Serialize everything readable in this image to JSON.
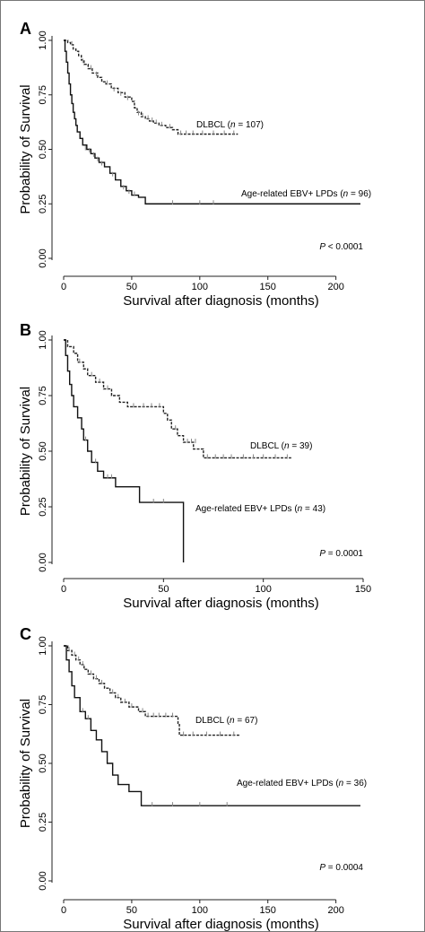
{
  "chart_data": [
    {
      "panel": "A",
      "type": "line",
      "xlabel": "Survival after diagnosis (months)",
      "ylabel": "Probability of Survival",
      "xlim": [
        0,
        220
      ],
      "ylim": [
        0,
        1
      ],
      "xticks": [
        0,
        50,
        100,
        150,
        200
      ],
      "yticks": [
        "0.00",
        "0.25",
        "0.50",
        "0.75",
        "1.00"
      ],
      "grid": false,
      "p_value": "P < 0.0001",
      "series": [
        {
          "name": "DLBCL (n = 107)",
          "label_parts": [
            "DLBCL (",
            "n",
            " = 107)"
          ],
          "style": "dashed",
          "color": "#222222",
          "steps": [
            [
              0,
              1.0
            ],
            [
              3,
              0.99
            ],
            [
              5,
              0.98
            ],
            [
              7,
              0.96
            ],
            [
              9,
              0.95
            ],
            [
              11,
              0.93
            ],
            [
              13,
              0.91
            ],
            [
              15,
              0.89
            ],
            [
              18,
              0.87
            ],
            [
              21,
              0.85
            ],
            [
              25,
              0.83
            ],
            [
              28,
              0.81
            ],
            [
              31,
              0.8
            ],
            [
              35,
              0.78
            ],
            [
              40,
              0.76
            ],
            [
              45,
              0.74
            ],
            [
              50,
              0.72
            ],
            [
              52,
              0.69
            ],
            [
              54,
              0.67
            ],
            [
              57,
              0.65
            ],
            [
              60,
              0.64
            ],
            [
              63,
              0.63
            ],
            [
              66,
              0.62
            ],
            [
              70,
              0.61
            ],
            [
              75,
              0.6
            ],
            [
              80,
              0.59
            ],
            [
              84,
              0.57
            ],
            [
              128,
              0.57
            ]
          ],
          "censored": [
            [
              6,
              0.98
            ],
            [
              14,
              0.9
            ],
            [
              20,
              0.87
            ],
            [
              24,
              0.84
            ],
            [
              32,
              0.8
            ],
            [
              37,
              0.77
            ],
            [
              42,
              0.75
            ],
            [
              47,
              0.73
            ],
            [
              55,
              0.66
            ],
            [
              58,
              0.65
            ],
            [
              62,
              0.64
            ],
            [
              65,
              0.63
            ],
            [
              68,
              0.62
            ],
            [
              72,
              0.61
            ],
            [
              78,
              0.6
            ],
            [
              86,
              0.57
            ],
            [
              90,
              0.57
            ],
            [
              95,
              0.57
            ],
            [
              102,
              0.57
            ],
            [
              110,
              0.57
            ],
            [
              118,
              0.57
            ],
            [
              125,
              0.57
            ]
          ]
        },
        {
          "name": "Age-related EBV+ LPDs (n = 96)",
          "label_parts": [
            "Age-related EBV+ LPDs (",
            "n",
            " = 96)"
          ],
          "style": "solid",
          "color": "#111111",
          "steps": [
            [
              0,
              1.0
            ],
            [
              1,
              0.95
            ],
            [
              2,
              0.9
            ],
            [
              3,
              0.85
            ],
            [
              4,
              0.8
            ],
            [
              5,
              0.75
            ],
            [
              6,
              0.71
            ],
            [
              7,
              0.67
            ],
            [
              8,
              0.64
            ],
            [
              9,
              0.61
            ],
            [
              10,
              0.58
            ],
            [
              12,
              0.55
            ],
            [
              14,
              0.52
            ],
            [
              17,
              0.5
            ],
            [
              20,
              0.48
            ],
            [
              23,
              0.46
            ],
            [
              26,
              0.44
            ],
            [
              30,
              0.42
            ],
            [
              34,
              0.39
            ],
            [
              38,
              0.36
            ],
            [
              42,
              0.33
            ],
            [
              46,
              0.31
            ],
            [
              50,
              0.29
            ],
            [
              55,
              0.28
            ],
            [
              60,
              0.25
            ],
            [
              218,
              0.25
            ]
          ],
          "censored": [
            [
              16,
              0.5
            ],
            [
              19,
              0.49
            ],
            [
              22,
              0.47
            ],
            [
              25,
              0.45
            ],
            [
              28,
              0.43
            ],
            [
              36,
              0.38
            ],
            [
              44,
              0.32
            ],
            [
              48,
              0.3
            ],
            [
              52,
              0.29
            ],
            [
              80,
              0.25
            ],
            [
              100,
              0.25
            ],
            [
              110,
              0.25
            ]
          ]
        }
      ]
    },
    {
      "panel": "B",
      "type": "line",
      "xlabel": "Survival after diagnosis (months)",
      "ylabel": "Probability of Survival",
      "xlim": [
        0,
        150
      ],
      "ylim": [
        0,
        1
      ],
      "xticks": [
        0,
        50,
        100,
        150
      ],
      "yticks": [
        "0.00",
        "0.25",
        "0.50",
        "0.75",
        "1.00"
      ],
      "grid": false,
      "p_value": "P = 0.0001",
      "series": [
        {
          "name": "DLBCL (n = 39)",
          "label_parts": [
            "DLBCL (",
            "n",
            " = 39)"
          ],
          "style": "dashed",
          "color": "#222222",
          "steps": [
            [
              0,
              1.0
            ],
            [
              2,
              0.97
            ],
            [
              5,
              0.94
            ],
            [
              7,
              0.9
            ],
            [
              10,
              0.87
            ],
            [
              12,
              0.84
            ],
            [
              16,
              0.81
            ],
            [
              20,
              0.78
            ],
            [
              24,
              0.75
            ],
            [
              28,
              0.72
            ],
            [
              32,
              0.7
            ],
            [
              50,
              0.67
            ],
            [
              52,
              0.64
            ],
            [
              54,
              0.6
            ],
            [
              57,
              0.57
            ],
            [
              60,
              0.54
            ],
            [
              65,
              0.51
            ],
            [
              70,
              0.47
            ],
            [
              114,
              0.47
            ]
          ],
          "censored": [
            [
              8,
              0.9
            ],
            [
              14,
              0.84
            ],
            [
              18,
              0.81
            ],
            [
              22,
              0.78
            ],
            [
              35,
              0.7
            ],
            [
              40,
              0.7
            ],
            [
              44,
              0.7
            ],
            [
              48,
              0.7
            ],
            [
              56,
              0.6
            ],
            [
              62,
              0.54
            ],
            [
              64,
              0.54
            ],
            [
              66,
              0.54
            ],
            [
              72,
              0.47
            ],
            [
              76,
              0.47
            ],
            [
              80,
              0.47
            ],
            [
              84,
              0.47
            ],
            [
              90,
              0.47
            ],
            [
              95,
              0.47
            ],
            [
              100,
              0.47
            ],
            [
              106,
              0.47
            ],
            [
              112,
              0.47
            ]
          ]
        },
        {
          "name": "Age-related EBV+ LPDs (n = 43)",
          "label_parts": [
            "Age-related EBV+ LPDs (",
            "n",
            " = 43)"
          ],
          "style": "solid",
          "color": "#111111",
          "steps": [
            [
              0,
              1.0
            ],
            [
              1,
              0.93
            ],
            [
              2,
              0.86
            ],
            [
              3,
              0.8
            ],
            [
              4,
              0.75
            ],
            [
              5,
              0.7
            ],
            [
              7,
              0.65
            ],
            [
              9,
              0.6
            ],
            [
              10,
              0.55
            ],
            [
              12,
              0.5
            ],
            [
              14,
              0.45
            ],
            [
              17,
              0.41
            ],
            [
              20,
              0.38
            ],
            [
              26,
              0.34
            ],
            [
              38,
              0.27
            ],
            [
              60,
              0.0
            ]
          ],
          "censored": [
            [
              11,
              0.55
            ],
            [
              16,
              0.45
            ],
            [
              22,
              0.38
            ],
            [
              24,
              0.38
            ],
            [
              45,
              0.27
            ],
            [
              50,
              0.27
            ]
          ]
        }
      ]
    },
    {
      "panel": "C",
      "type": "line",
      "xlabel": "Survival after diagnosis (months)",
      "ylabel": "Probability of Survival",
      "xlim": [
        0,
        220
      ],
      "ylim": [
        0,
        1
      ],
      "xticks": [
        0,
        50,
        100,
        150,
        200
      ],
      "yticks": [
        "0.00",
        "0.25",
        "0.50",
        "0.75",
        "1.00"
      ],
      "grid": false,
      "p_value": "P = 0.0004",
      "series": [
        {
          "name": "DLBCL (n = 67)",
          "label_parts": [
            "DLBCL (",
            "n",
            " = 67)"
          ],
          "style": "dashed",
          "color": "#222222",
          "steps": [
            [
              0,
              1.0
            ],
            [
              3,
              0.98
            ],
            [
              6,
              0.96
            ],
            [
              9,
              0.94
            ],
            [
              12,
              0.92
            ],
            [
              15,
              0.9
            ],
            [
              18,
              0.88
            ],
            [
              22,
              0.86
            ],
            [
              26,
              0.84
            ],
            [
              30,
              0.82
            ],
            [
              34,
              0.8
            ],
            [
              38,
              0.78
            ],
            [
              42,
              0.76
            ],
            [
              48,
              0.74
            ],
            [
              55,
              0.72
            ],
            [
              60,
              0.7
            ],
            [
              84,
              0.67
            ],
            [
              85,
              0.62
            ],
            [
              130,
              0.62
            ]
          ],
          "censored": [
            [
              4,
              0.98
            ],
            [
              8,
              0.96
            ],
            [
              11,
              0.94
            ],
            [
              14,
              0.92
            ],
            [
              20,
              0.88
            ],
            [
              24,
              0.86
            ],
            [
              28,
              0.84
            ],
            [
              36,
              0.8
            ],
            [
              40,
              0.78
            ],
            [
              45,
              0.76
            ],
            [
              50,
              0.74
            ],
            [
              58,
              0.72
            ],
            [
              62,
              0.7
            ],
            [
              66,
              0.7
            ],
            [
              70,
              0.7
            ],
            [
              75,
              0.7
            ],
            [
              80,
              0.7
            ],
            [
              88,
              0.62
            ],
            [
              95,
              0.62
            ],
            [
              105,
              0.62
            ],
            [
              115,
              0.62
            ],
            [
              125,
              0.62
            ]
          ]
        },
        {
          "name": "Age-related EBV+ LPDs (n = 36)",
          "label_parts": [
            "Age-related EBV+ LPDs (",
            "n",
            " = 36)"
          ],
          "style": "solid",
          "color": "#111111",
          "steps": [
            [
              0,
              1.0
            ],
            [
              2,
              0.94
            ],
            [
              4,
              0.89
            ],
            [
              6,
              0.83
            ],
            [
              8,
              0.78
            ],
            [
              12,
              0.72
            ],
            [
              16,
              0.69
            ],
            [
              20,
              0.64
            ],
            [
              24,
              0.6
            ],
            [
              28,
              0.55
            ],
            [
              32,
              0.5
            ],
            [
              36,
              0.45
            ],
            [
              40,
              0.41
            ],
            [
              48,
              0.38
            ],
            [
              57,
              0.32
            ],
            [
              218,
              0.32
            ]
          ],
          "censored": [
            [
              14,
              0.72
            ],
            [
              18,
              0.69
            ],
            [
              65,
              0.32
            ],
            [
              80,
              0.32
            ],
            [
              100,
              0.32
            ],
            [
              120,
              0.32
            ]
          ]
        }
      ]
    }
  ]
}
